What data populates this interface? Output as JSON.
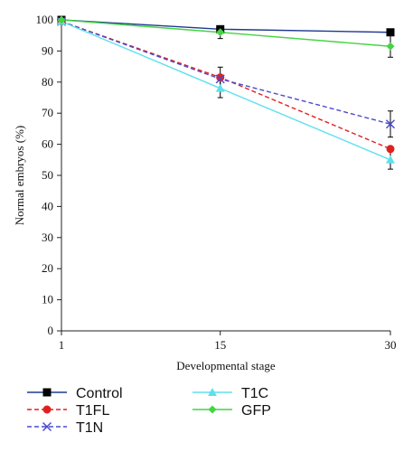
{
  "chart_data": {
    "type": "line",
    "title": "",
    "xlabel": "Developmental stage",
    "ylabel": "Normal embryos (%)",
    "x": [
      1,
      15,
      30
    ],
    "x_tick_labels": [
      "1",
      "15",
      "30"
    ],
    "y_ticks": [
      0,
      10,
      20,
      30,
      40,
      50,
      60,
      70,
      80,
      90,
      100
    ],
    "ylim": [
      0,
      100
    ],
    "grid": false,
    "legend_position": "bottom",
    "series": [
      {
        "name": "Control",
        "values": [
          100,
          97,
          96
        ],
        "error": [
          0,
          0,
          0
        ],
        "color": "#1f3a8f",
        "marker": "square",
        "marker_color": "#000000",
        "dash": "solid"
      },
      {
        "name": "T1FL",
        "values": [
          99.5,
          81.5,
          58.5
        ],
        "error": [
          0,
          0,
          0
        ],
        "color": "#e02020",
        "marker": "circle",
        "marker_color": "#e02020",
        "dash": "dashed"
      },
      {
        "name": "T1N",
        "values": [
          99.5,
          81,
          66.5
        ],
        "error": [
          0,
          3.8,
          4.2
        ],
        "color": "#4a4acf",
        "marker": "x",
        "marker_color": "#4a4acf",
        "dash": "dashed"
      },
      {
        "name": "T1C",
        "values": [
          99.5,
          78,
          55
        ],
        "error": [
          0,
          3,
          3
        ],
        "color": "#5ee0ee",
        "marker": "triangle",
        "marker_color": "#5ee0ee",
        "dash": "solid"
      },
      {
        "name": "GFP",
        "values": [
          100,
          96,
          91.5
        ],
        "error": [
          0,
          2,
          3.5
        ],
        "color": "#44d444",
        "marker": "diamond",
        "marker_color": "#44d444",
        "dash": "solid"
      }
    ]
  }
}
